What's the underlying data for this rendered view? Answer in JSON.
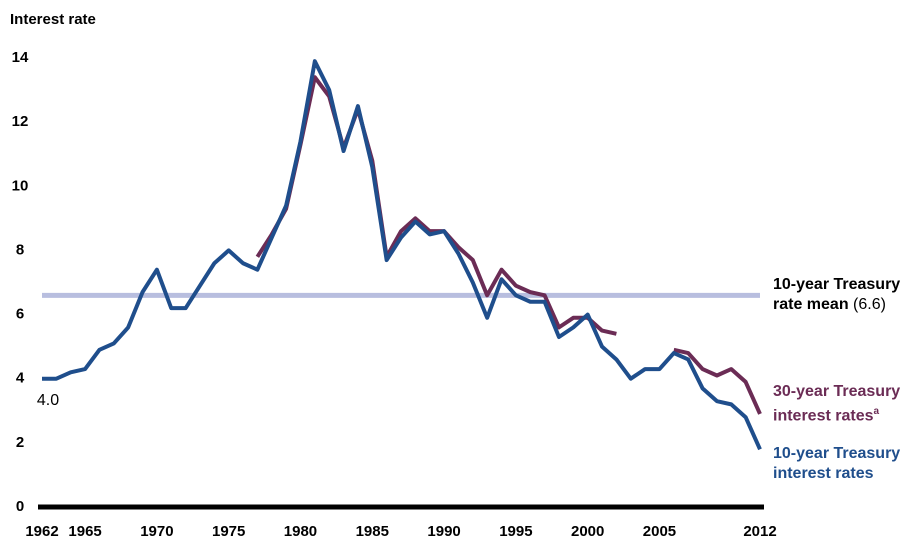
{
  "chart_data": {
    "type": "line",
    "y_axis_label": "Interest rate",
    "x": [
      1962,
      1963,
      1964,
      1965,
      1966,
      1967,
      1968,
      1969,
      1970,
      1971,
      1972,
      1973,
      1974,
      1975,
      1976,
      1977,
      1978,
      1979,
      1980,
      1981,
      1982,
      1983,
      1984,
      1985,
      1986,
      1987,
      1988,
      1989,
      1990,
      1991,
      1992,
      1993,
      1994,
      1995,
      1996,
      1997,
      1998,
      1999,
      2000,
      2001,
      2002,
      2003,
      2004,
      2005,
      2006,
      2007,
      2008,
      2009,
      2010,
      2011,
      2012
    ],
    "series": [
      {
        "name": "30-year Treasury interest rates",
        "footnote_mark": "a",
        "color": "#6b2c55",
        "values": [
          null,
          null,
          null,
          null,
          null,
          null,
          null,
          null,
          null,
          null,
          null,
          null,
          null,
          null,
          null,
          7.8,
          8.5,
          9.3,
          11.3,
          13.4,
          12.8,
          11.2,
          12.4,
          10.8,
          7.8,
          8.6,
          9.0,
          8.6,
          8.6,
          8.1,
          7.7,
          6.6,
          7.4,
          6.9,
          6.7,
          6.6,
          5.6,
          5.9,
          5.9,
          5.5,
          5.4,
          null,
          null,
          null,
          4.9,
          4.8,
          4.3,
          4.1,
          4.3,
          3.9,
          2.9
        ]
      },
      {
        "name": "10-year Treasury interest rates",
        "color": "#1f4e8c",
        "values": [
          4.0,
          4.0,
          4.2,
          4.3,
          4.9,
          5.1,
          5.6,
          6.7,
          7.4,
          6.2,
          6.2,
          6.9,
          7.6,
          8.0,
          7.6,
          7.4,
          8.4,
          9.4,
          11.4,
          13.9,
          13.0,
          11.1,
          12.5,
          10.6,
          7.7,
          8.4,
          8.9,
          8.5,
          8.6,
          7.9,
          7.0,
          5.9,
          7.1,
          6.6,
          6.4,
          6.4,
          5.3,
          5.6,
          6.0,
          5.0,
          4.6,
          4.0,
          4.3,
          4.3,
          4.8,
          4.6,
          3.7,
          3.3,
          3.2,
          2.8,
          1.8
        ]
      }
    ],
    "annotations": [
      {
        "text": "4.0",
        "x": 1962,
        "y": 4.0
      },
      {
        "text": "10-year Treasury rate mean",
        "y": 6.6,
        "value_label": "(6.6)",
        "color": "#b8bedf"
      }
    ],
    "xlim": [
      1962,
      2012
    ],
    "xticks": [
      1962,
      1965,
      1970,
      1975,
      1980,
      1985,
      1990,
      1995,
      2000,
      2005,
      2012
    ],
    "ylim": [
      0,
      14
    ],
    "yticks": [
      0,
      2,
      4,
      6,
      8,
      10,
      12,
      14
    ],
    "grid": false
  }
}
